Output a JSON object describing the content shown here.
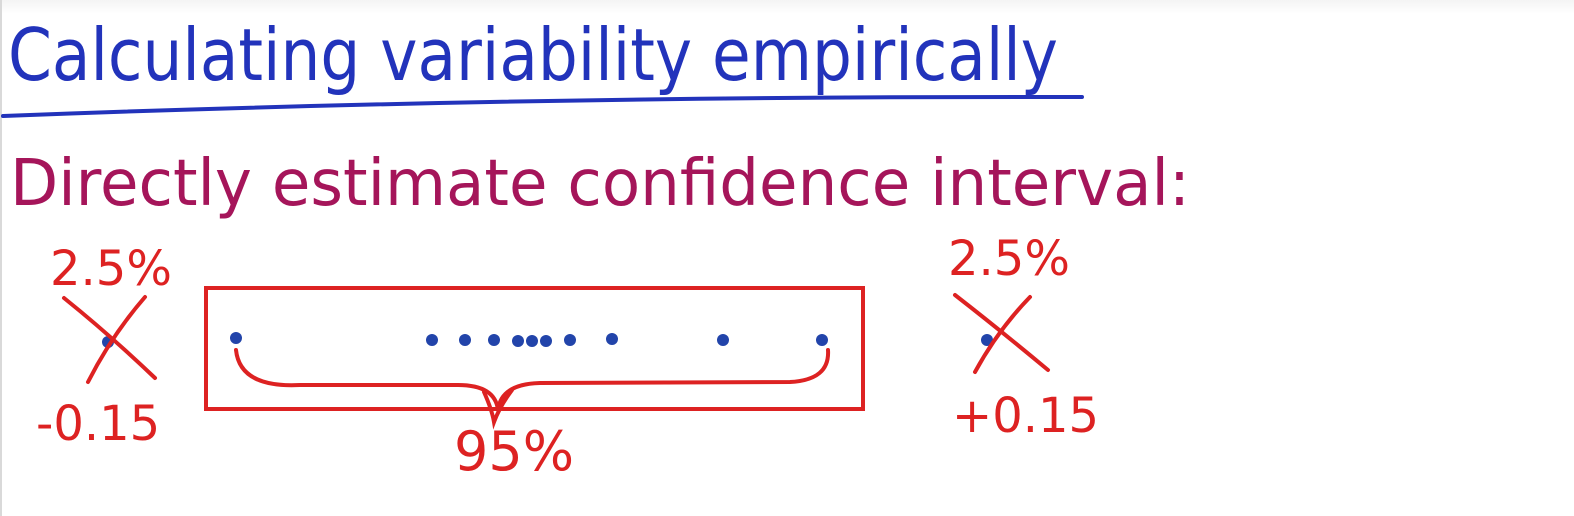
{
  "title": "Calculating variability empirically",
  "subtitle": "Directly estimate confidence interval:",
  "left_tail": {
    "percent": "2.5%",
    "value": "-0.15"
  },
  "right_tail": {
    "percent": "2.5%",
    "value": "+0.15"
  },
  "center_label": "95%",
  "colors": {
    "title": "#2233bb",
    "subtitle": "#a5155a",
    "annotation": "#dd2222",
    "dots": "#2244aa"
  },
  "icons": {
    "tail_marks": "cross-out-icon"
  }
}
